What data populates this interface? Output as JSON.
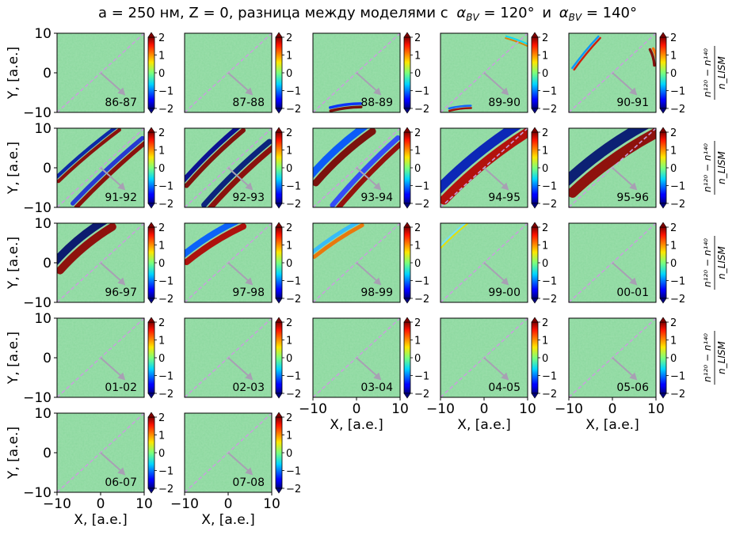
{
  "title": "a = 250 нм, Z = 0, разница между моделями с",
  "title_math": {
    "alpha_symbol": "α",
    "subscript": "BV",
    "value1": "120°",
    "connector": "и",
    "value2": "140°"
  },
  "chart_data": {
    "type": "heatmap",
    "layout": {
      "rows": 5,
      "cols": 5,
      "last_row_panels": 2
    },
    "xlabel": "X, [a.e.]",
    "ylabel": "Y, [a.e.]",
    "xlim": [
      -10,
      10
    ],
    "ylim": [
      -10,
      10
    ],
    "xticks": [
      "−10",
      "0",
      "10"
    ],
    "yticks": [
      "−10",
      "0",
      "10"
    ],
    "colorbar": {
      "range": [
        -2,
        2
      ],
      "ticks": [
        "2",
        "1",
        "0",
        "−1",
        "−2"
      ],
      "colormap": "jet",
      "extend": "both",
      "label": "(n^d_120 − n^d_140) / n^d_LISM"
    },
    "overlays": {
      "diagonal_dashed_line": {
        "from": [
          -10,
          -10
        ],
        "to": [
          10,
          10
        ],
        "color": "#c8a0dc",
        "style": "dashed"
      },
      "arrow": {
        "from": [
          0,
          0
        ],
        "to": [
          5.5,
          -5.5
        ],
        "color": "#a8a0b4"
      }
    },
    "panels": [
      {
        "label": "86-87",
        "bands": []
      },
      {
        "label": "87-88",
        "bands": []
      },
      {
        "label": "88-89",
        "bands": [
          {
            "x0": -6,
            "y0": -9.2,
            "x1": 1,
            "y1": -8.2,
            "pos": "#7a0000",
            "neg": "#0026ff",
            "w": 0.7
          }
        ]
      },
      {
        "label": "89-90",
        "bands": [
          {
            "x0": -8,
            "y0": -9.3,
            "x1": -3,
            "y1": -8.6,
            "pos": "#a00000",
            "neg": "#0a5cff",
            "w": 0.5
          },
          {
            "x0": 5,
            "y0": 9,
            "x1": 10,
            "y1": 7,
            "pos": "#d98000",
            "neg": "#00d8ff",
            "w": 0.4
          }
        ]
      },
      {
        "label": "90-91",
        "bands": [
          {
            "x0": -9,
            "y0": 1,
            "x1": -3,
            "y1": 9,
            "pos": "#d41000",
            "neg": "#0090ff",
            "w": 0.5
          },
          {
            "x0": 9,
            "y0": 6,
            "x1": 10,
            "y1": 2,
            "pos": "#800000",
            "neg": "#ff6a00",
            "w": 0.7
          }
        ]
      },
      {
        "label": "91-92",
        "bands": [
          {
            "x0": -10,
            "y0": -3,
            "x1": 4,
            "y1": 10,
            "pos": "#8a0000",
            "neg": "#001aa8",
            "w": 0.9
          },
          {
            "x0": -6,
            "y0": -9.5,
            "x1": 10,
            "y1": 7,
            "pos": "#8a0000",
            "neg": "#1d2bd6",
            "w": 1.1
          }
        ]
      },
      {
        "label": "92-93",
        "bands": [
          {
            "x0": -10,
            "y0": -4,
            "x1": 3,
            "y1": 10,
            "pos": "#800000",
            "neg": "#000090",
            "w": 1.2
          },
          {
            "x0": -5,
            "y0": -10,
            "x1": 10,
            "y1": 6,
            "pos": "#8a0000",
            "neg": "#00147a",
            "w": 1.4
          }
        ]
      },
      {
        "label": "93-94",
        "bands": [
          {
            "x0": -10,
            "y0": -3,
            "x1": 3,
            "y1": 10,
            "pos": "#7a0000",
            "neg": "#0050ff",
            "w": 1.8
          },
          {
            "x0": -5,
            "y0": -10,
            "x1": 10,
            "y1": 7,
            "pos": "#950000",
            "neg": "#2b3fff",
            "w": 1.3
          }
        ]
      },
      {
        "label": "94-95",
        "bands": [
          {
            "x0": -10,
            "y0": -7,
            "x1": 9,
            "y1": 10,
            "pos": "#b50000",
            "neg": "#0018b8",
            "w": 2.4
          }
        ]
      },
      {
        "label": "95-96",
        "bands": [
          {
            "x0": -10,
            "y0": -5,
            "x1": 9,
            "y1": 10,
            "pos": "#8e0000",
            "neg": "#001070",
            "w": 2.6
          }
        ]
      },
      {
        "label": "96-97",
        "bands": [
          {
            "x0": -10,
            "y0": -1,
            "x1": 2,
            "y1": 10,
            "pos": "#8e0000",
            "neg": "#000a6a",
            "w": 2.0
          }
        ]
      },
      {
        "label": "97-98",
        "bands": [
          {
            "x0": -10,
            "y0": 1,
            "x1": 3,
            "y1": 10,
            "pos": "#b00000",
            "neg": "#0058ff",
            "w": 1.6
          }
        ]
      },
      {
        "label": "98-99",
        "bands": [
          {
            "x0": -10,
            "y0": 2,
            "x1": 1,
            "y1": 10,
            "pos": "#f07000",
            "neg": "#30b8ff",
            "w": 1.0
          }
        ]
      },
      {
        "label": "99-00",
        "bands": [
          {
            "x0": -10,
            "y0": 4,
            "x1": -4,
            "y1": 10,
            "pos": "#e8e000",
            "neg": "#70e0ff",
            "w": 0.4
          }
        ]
      },
      {
        "label": "00-01",
        "bands": []
      },
      {
        "label": "01-02",
        "bands": []
      },
      {
        "label": "02-03",
        "bands": []
      },
      {
        "label": "03-04",
        "bands": []
      },
      {
        "label": "04-05",
        "bands": []
      },
      {
        "label": "05-06",
        "bands": []
      },
      {
        "label": "06-07",
        "bands": []
      },
      {
        "label": "07-08",
        "bands": []
      }
    ]
  }
}
